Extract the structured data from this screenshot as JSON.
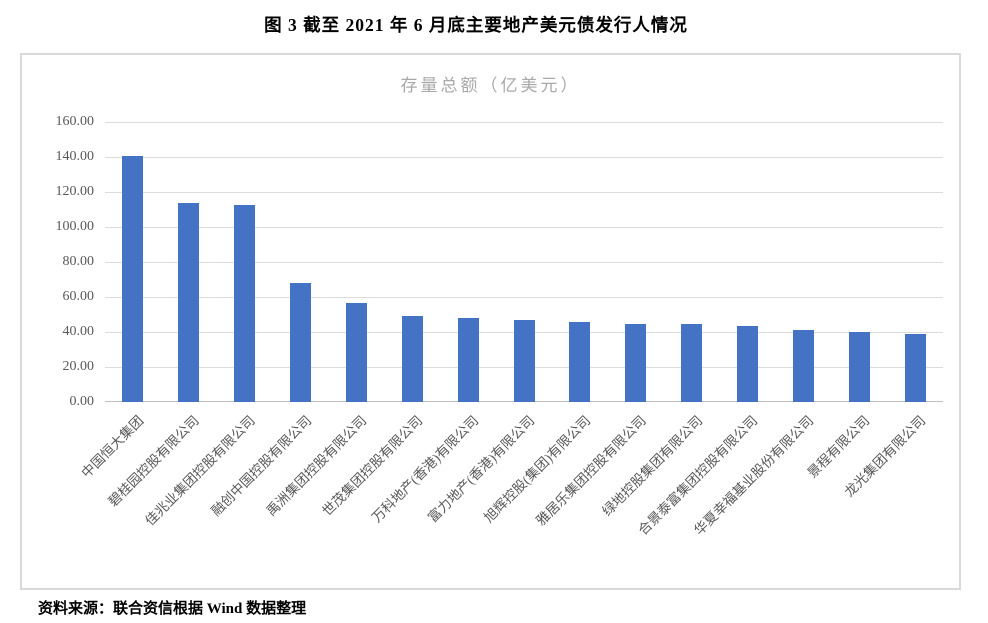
{
  "page": {
    "title": "图 3  截至 2021 年 6 月底主要地产美元债发行人情况",
    "source_note": "资料来源：联合资信根据 Wind 数据整理"
  },
  "chart_data": {
    "type": "bar",
    "title": "存量总额（亿美元）",
    "categories": [
      "中国恒大集团",
      "碧桂园控股有限公司",
      "佳兆业集团控股有限公司",
      "融创中国控股有限公司",
      "禹洲集团控股有限公司",
      "世茂集团控股有限公司",
      "万科地产(香港)有限公司",
      "富力地产(香港)有限公司",
      "旭辉控股(集团)有限公司",
      "雅居乐集团控股有限公司",
      "绿地控股集团有限公司",
      "合景泰富集团控股有限公司",
      "华夏幸福基业股份有限公司",
      "景程有限公司",
      "龙光集团有限公司"
    ],
    "values": [
      140.3,
      114.0,
      112.8,
      67.9,
      56.7,
      49.2,
      48.0,
      47.0,
      45.7,
      44.5,
      44.3,
      43.7,
      40.9,
      39.8,
      39.0
    ],
    "xlabel": "",
    "ylabel": "",
    "ylim": [
      0,
      160
    ],
    "ytick_step": 20,
    "ytick_decimals": 2,
    "grid": true,
    "legend": "none",
    "colors": {
      "bar": "#4472c4",
      "grid": "#dcdcdc",
      "axis": "#bfbfbf",
      "chart_title": "#a8a8a8",
      "tick_label": "#595959",
      "frame_border": "#d9d9d9"
    }
  }
}
